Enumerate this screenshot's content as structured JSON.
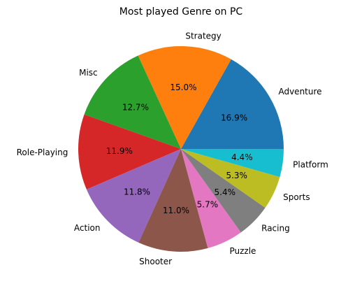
{
  "chart_data": {
    "type": "pie",
    "title": "Most played Genre on PC",
    "start_angle_deg": 0,
    "direction": "counterclockwise",
    "categories": [
      "Adventure",
      "Strategy",
      "Misc",
      "Role-Playing",
      "Action",
      "Shooter",
      "Puzzle",
      "Racing",
      "Sports",
      "Platform"
    ],
    "values": [
      16.9,
      15.0,
      12.7,
      11.9,
      11.8,
      11.0,
      5.7,
      5.4,
      5.3,
      4.4
    ],
    "percent_labels": [
      "16.9%",
      "15.0%",
      "12.7%",
      "11.9%",
      "11.8%",
      "11.0%",
      "5.7%",
      "5.4%",
      "5.3%",
      "4.4%"
    ],
    "colors": [
      "#1f77b4",
      "#ff7f0e",
      "#2ca02c",
      "#d62728",
      "#9467bd",
      "#8c564b",
      "#e377c2",
      "#7f7f7f",
      "#bcbd22",
      "#17becf"
    ],
    "legend": "none"
  }
}
